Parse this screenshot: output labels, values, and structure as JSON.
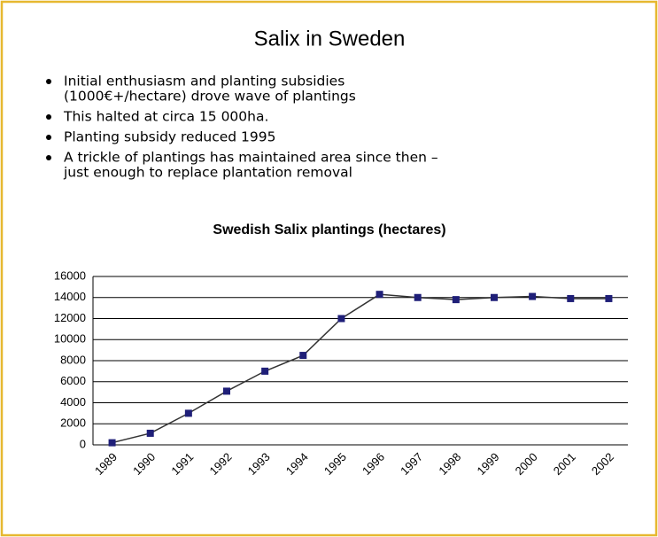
{
  "slide": {
    "title": "Salix in Sweden",
    "bullets": [
      [
        "Initial enthusiasm and planting subsidies",
        "(1000€+/hectare) drove wave of plantings"
      ],
      [
        "This halted at circa 15 000ha."
      ],
      [
        "Planting subsidy reduced 1995"
      ],
      [
        "A trickle of plantings has maintained area since then –",
        "just enough to replace plantation removal"
      ]
    ]
  },
  "chart_data": {
    "type": "line",
    "title": "Swedish Salix plantings (hectares)",
    "categories": [
      "1989",
      "1990",
      "1991",
      "1992",
      "1993",
      "1994",
      "1995",
      "1996",
      "1997",
      "1998",
      "1999",
      "2000",
      "2001",
      "2002"
    ],
    "values": [
      200,
      1100,
      3000,
      5100,
      7000,
      8500,
      12000,
      14300,
      14000,
      13800,
      14000,
      14100,
      13900,
      13900
    ],
    "line_color": "#333333",
    "marker_color": "#1f1f78",
    "ylim": [
      0,
      16000
    ],
    "yticks": [
      0,
      2000,
      4000,
      6000,
      8000,
      10000,
      12000,
      14000,
      16000
    ],
    "grid": true
  }
}
